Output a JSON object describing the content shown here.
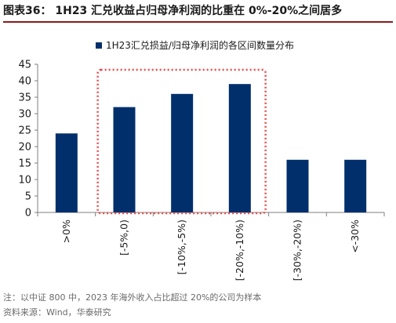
{
  "figure": {
    "title": "图表36： 1H23 汇兑收益占归母净利润的比重在 0%-20%之间居多",
    "note": "注：以中证 800 中，2023 年海外收入占比超过 20%的公司为样本",
    "source": "资料来源：Wind，华泰研究"
  },
  "colors": {
    "bar": "#002f6c",
    "highlight_box": "#e84a4a",
    "title_rule": "#8a1a1a"
  },
  "chart_data": {
    "type": "bar",
    "categories": [
      ">0%",
      "[-5%,0)",
      "[-10%,-5%)",
      "[-20%,-10%)",
      "[-30%,-20%)",
      "<-30%"
    ],
    "series": [
      {
        "name": "1H23汇兑损益/归母净利润的各区间数量分布",
        "values": [
          24,
          32,
          36,
          39,
          16,
          16
        ]
      }
    ],
    "title": "",
    "xlabel": "",
    "ylabel": "",
    "ylim": [
      0,
      45
    ],
    "yticks": [
      0,
      5,
      10,
      15,
      20,
      25,
      30,
      35,
      40,
      45
    ],
    "grid": false,
    "legend": "top-center",
    "highlight_categories": [
      "[-5%,0)",
      "[-10%,-5%)",
      "[-20%,-10%)"
    ],
    "highlight_style": "dotted-box"
  }
}
